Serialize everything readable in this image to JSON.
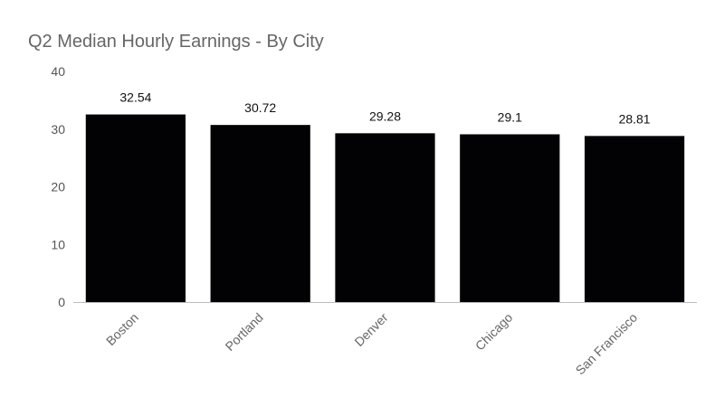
{
  "chart_data": {
    "type": "bar",
    "title": "Q2 Median Hourly Earnings - By City",
    "xlabel": "",
    "ylabel": "",
    "categories": [
      "Boston",
      "Portland",
      "Denver",
      "Chicago",
      "San Francisco"
    ],
    "values": [
      32.54,
      30.72,
      29.28,
      29.1,
      28.81
    ],
    "data_labels": [
      "32.54",
      "30.72",
      "29.28",
      "29.1",
      "28.81"
    ],
    "ylim": [
      0,
      40
    ],
    "yticks": [
      0,
      10,
      20,
      30,
      40
    ],
    "grid": false,
    "legend": "none",
    "bar_color": "#020103"
  }
}
